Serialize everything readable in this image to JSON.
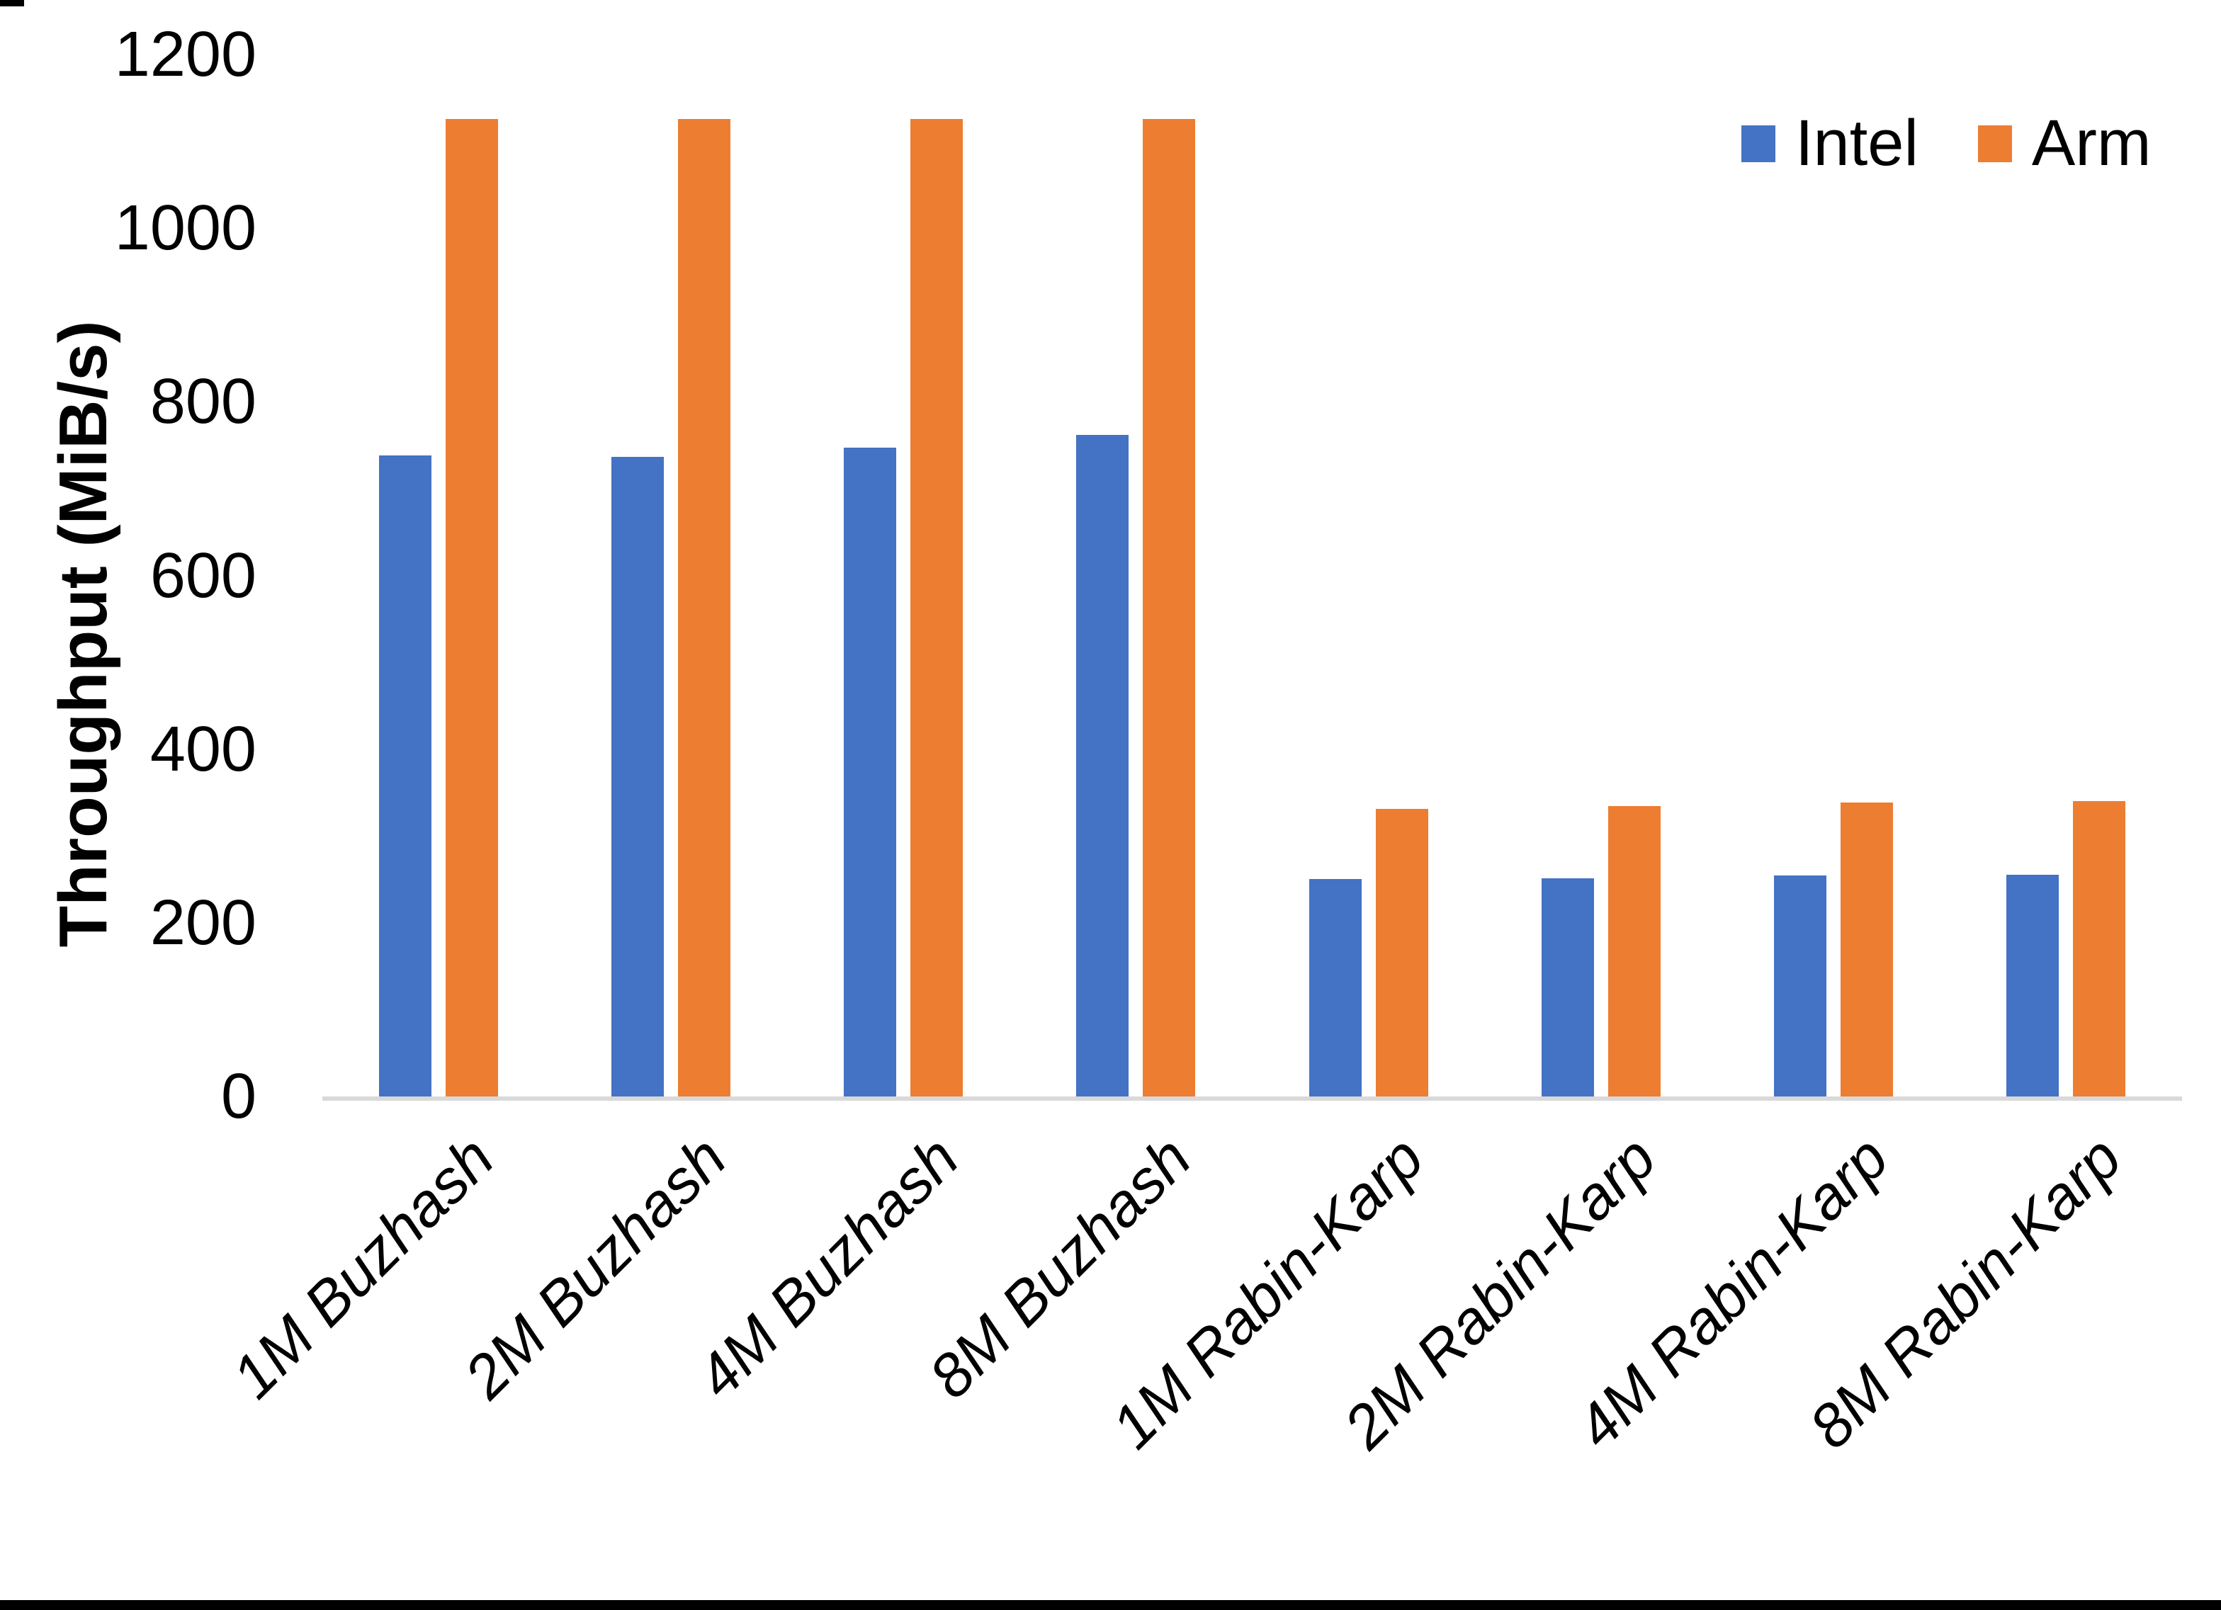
{
  "chart_data": {
    "type": "bar",
    "title": "",
    "categories": [
      "1M Buzhash",
      "2M Buzhash",
      "4M Buzhash",
      "8M Buzhash",
      "1M Rabin-Karp",
      "2M Rabin-Karp",
      "4M Rabin-Karp",
      "8M Rabin-Karp"
    ],
    "series": [
      {
        "name": "Intel",
        "color": "#4472C4",
        "values": [
          741,
          739,
          750,
          764,
          253,
          254,
          257,
          258
        ]
      },
      {
        "name": "Arm",
        "color": "#ED7D31",
        "values": [
          1128,
          1128,
          1128,
          1128,
          334,
          337,
          341,
          343
        ]
      }
    ],
    "xlabel": "",
    "ylabel": "Throughput (MiB/s)",
    "ylim": [
      0,
      1200
    ],
    "yticks": [
      0,
      200,
      400,
      600,
      800,
      1000,
      1200
    ],
    "grid": "off",
    "legend_position": "top-right",
    "axis_line_color": "#D9D9D9",
    "tick_label_color": "#000000"
  },
  "legend": {
    "items": [
      {
        "label": "Intel",
        "color": "#4472C4"
      },
      {
        "label": "Arm",
        "color": "#ED7D31"
      }
    ]
  }
}
